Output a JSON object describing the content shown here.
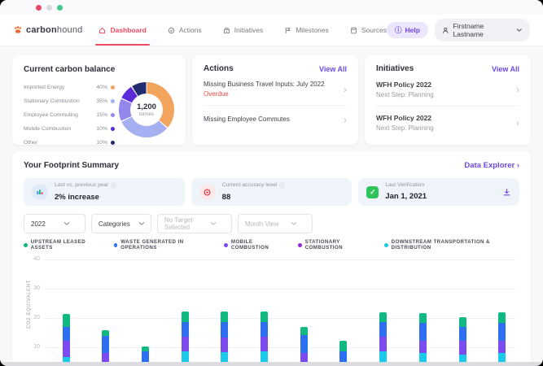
{
  "nav": {
    "brand_bold": "carbon",
    "brand_light": "hound",
    "items": [
      {
        "label": "Dashboard"
      },
      {
        "label": "Actions"
      },
      {
        "label": "Initiatives"
      },
      {
        "label": "Milestones"
      },
      {
        "label": "Sources"
      }
    ],
    "help_label": "Help",
    "user_name": "Firstname Lastname"
  },
  "carbon_balance": {
    "title": "Current carbon balance",
    "center_value": "1,200",
    "center_unit": "tonnes",
    "legend": [
      {
        "label": "Imported Energy",
        "pct": "40%",
        "color": "#F2A45C"
      },
      {
        "label": "Stationary Combustion",
        "pct": "35%",
        "color": "#A5B0F3"
      },
      {
        "label": "Employee Commuting",
        "pct": "15%",
        "color": "#9386EC"
      },
      {
        "label": "Mobile Combustion",
        "pct": "10%",
        "color": "#5B2BD9"
      },
      {
        "label": "Other",
        "pct": "10%",
        "color": "#222B6E"
      }
    ]
  },
  "actions_card": {
    "title": "Actions",
    "view_all": "View All",
    "items": [
      {
        "title": "Missing Business Travel Inputs: July 2022",
        "status": "Overdue"
      },
      {
        "title": "Missing Employee Commutes",
        "status": ""
      }
    ]
  },
  "initiatives_card": {
    "title": "Initiatives",
    "view_all": "View All",
    "items": [
      {
        "title": "WFH Policy 2022",
        "subtitle": "Next Step: Planning"
      },
      {
        "title": "WFH Policy 2022",
        "subtitle": "Next Step: Planning"
      }
    ]
  },
  "summary": {
    "title": "Your Footprint Summary",
    "data_explorer": "Data Explorer",
    "stats": [
      {
        "label": "Last vs. previous year",
        "value": "2% increase",
        "info": true
      },
      {
        "label": "Current accuracy level",
        "value": "88",
        "info": true
      },
      {
        "label": "Last Verification",
        "value": "Jan 1, 2021",
        "info": false
      }
    ],
    "filters": [
      {
        "label": "2022",
        "disabled": false
      },
      {
        "label": "Categories",
        "disabled": false
      },
      {
        "label": "No Target Selected",
        "disabled": true
      },
      {
        "label": "Month View",
        "disabled": true
      }
    ]
  },
  "chart_data": [
    {
      "type": "pie",
      "title": "Current carbon balance",
      "center_label": "1,200 tonnes",
      "slices": [
        {
          "label": "Imported Energy",
          "value": 40,
          "color": "#F2A45C"
        },
        {
          "label": "Stationary Combustion",
          "value": 35,
          "color": "#A5B0F3"
        },
        {
          "label": "Employee Commuting",
          "value": 15,
          "color": "#9386EC"
        },
        {
          "label": "Mobile Combustion",
          "value": 10,
          "color": "#5B2BD9"
        },
        {
          "label": "Other",
          "value": 10,
          "color": "#222B6E"
        }
      ]
    },
    {
      "type": "bar",
      "stacked": true,
      "ylabel": "CO2 EQUIVALENT",
      "yticks": [
        10,
        20,
        30,
        40
      ],
      "ylim": [
        0,
        42
      ],
      "x_count": 12,
      "x_labels_visible": false,
      "series": [
        {
          "name": "UPSTREAM LEASED ASSETS",
          "color": "#10B981",
          "values": [
            4.5,
            1.9,
            1.7,
            3.6,
            3.6,
            3.6,
            2.7,
            3.6,
            3.3,
            3.3,
            3.4,
            3.5
          ]
        },
        {
          "name": "WASTE GENERATED IN OPERATIONS",
          "color": "#2D6FF0",
          "values": [
            4.7,
            5.8,
            8.6,
            5.0,
            5.3,
            5.0,
            6.1,
            8.6,
            5.0,
            6.1,
            4.7,
            6.1
          ]
        },
        {
          "name": "MOBILE COMBUSTION",
          "color": "#7C4BF0",
          "values": [
            5.5,
            8.1,
            0,
            5.0,
            5.0,
            5.0,
            8.1,
            0,
            5.0,
            4.2,
            4.7,
            4.2
          ]
        },
        {
          "name": "STATIONARY COMBUSTION",
          "color": "#9C2BD6",
          "values": [
            0,
            0,
            0,
            0,
            0,
            0,
            0,
            0,
            0,
            0,
            0,
            0
          ]
        },
        {
          "name": "DOWNSTREAM TRANSPORTATION & DISTRIBUTION",
          "color": "#1BC9E8",
          "values": [
            6.7,
            0,
            0,
            8.6,
            8.3,
            8.6,
            0,
            0,
            8.6,
            8.1,
            7.5,
            8.1
          ]
        }
      ],
      "stack_order_bottom_to_top": [
        4,
        3,
        2,
        1,
        0
      ],
      "grid": true,
      "legend_position": "top"
    }
  ]
}
